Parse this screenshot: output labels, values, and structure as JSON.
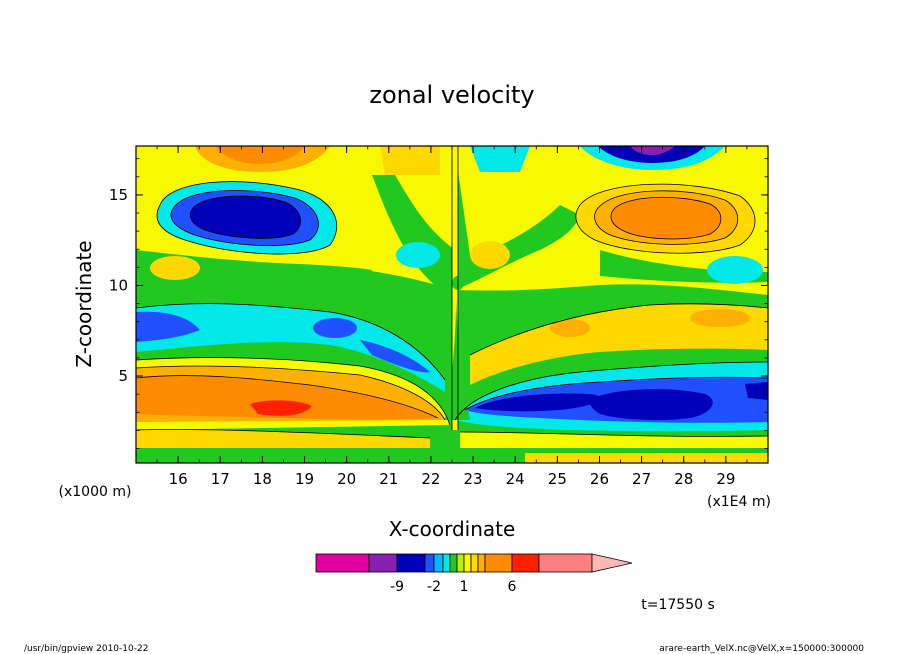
{
  "chart_data": {
    "type": "heatmap",
    "title": "zonal velocity",
    "xlabel": "X-coordinate",
    "ylabel": "Z-coordinate",
    "x_unit_left": "(x1000 m)",
    "x_unit_right": "(x1E4 m)",
    "x_ticks": [
      16,
      17,
      18,
      19,
      20,
      21,
      22,
      23,
      24,
      25,
      26,
      27,
      28,
      29
    ],
    "x_ticklabels": [
      "16",
      "17",
      "18",
      "19",
      "20",
      "21",
      "22",
      "23",
      "24",
      "25",
      "26",
      "27",
      "28",
      "29"
    ],
    "y_ticks": [
      5,
      10,
      15
    ],
    "y_ticklabels": [
      "5",
      "10",
      "15"
    ],
    "xlim": [
      15.0,
      30.0
    ],
    "ylim": [
      0.2,
      17.7
    ],
    "time_label": "t=17550 s",
    "colorbar": {
      "ticks": [
        "-9",
        "-2",
        "1",
        "6"
      ],
      "colors": [
        "#e000a0",
        "#8a20b0",
        "#0000b8",
        "#2050ff",
        "#00b8ff",
        "#00e8e8",
        "#20c820",
        "#b8f000",
        "#f8f800",
        "#ffd800",
        "#ffb000",
        "#ff8c00",
        "#ff2000",
        "#ff8080",
        "#ffb8b8"
      ]
    },
    "field_fills": [
      {
        "name": "background",
        "color": "#20c820"
      },
      {
        "name": "upper-left-jet-mid",
        "color": "#00e8e8",
        "cx": 18.0,
        "cy": 13.6
      },
      {
        "name": "upper-left-jet-core",
        "color": "#0000b8",
        "cx": 18.0,
        "cy": 13.6
      },
      {
        "name": "upper-right-jet-outer",
        "color": "#f8f800",
        "cx": 27.0,
        "cy": 13.6
      },
      {
        "name": "upper-right-jet-core",
        "color": "#ff8c00",
        "cx": 27.0,
        "cy": 13.6
      },
      {
        "name": "top-left-core",
        "color": "#ff8c00",
        "cx": 18.0,
        "cy": 17.5
      },
      {
        "name": "top-right-core",
        "color": "#0000b8",
        "cx": 27.0,
        "cy": 17.5
      },
      {
        "name": "lower-left-band",
        "color": "#ff8c00",
        "cx": 18.5,
        "cy": 3.0
      },
      {
        "name": "lower-right-band",
        "color": "#0000b8",
        "cx": 27.0,
        "cy": 3.0
      }
    ]
  },
  "footer": {
    "left": "/usr/bin/gpview   2010-10-22",
    "right": "arare-earth_VelX.nc@VelX,x=150000:300000"
  }
}
